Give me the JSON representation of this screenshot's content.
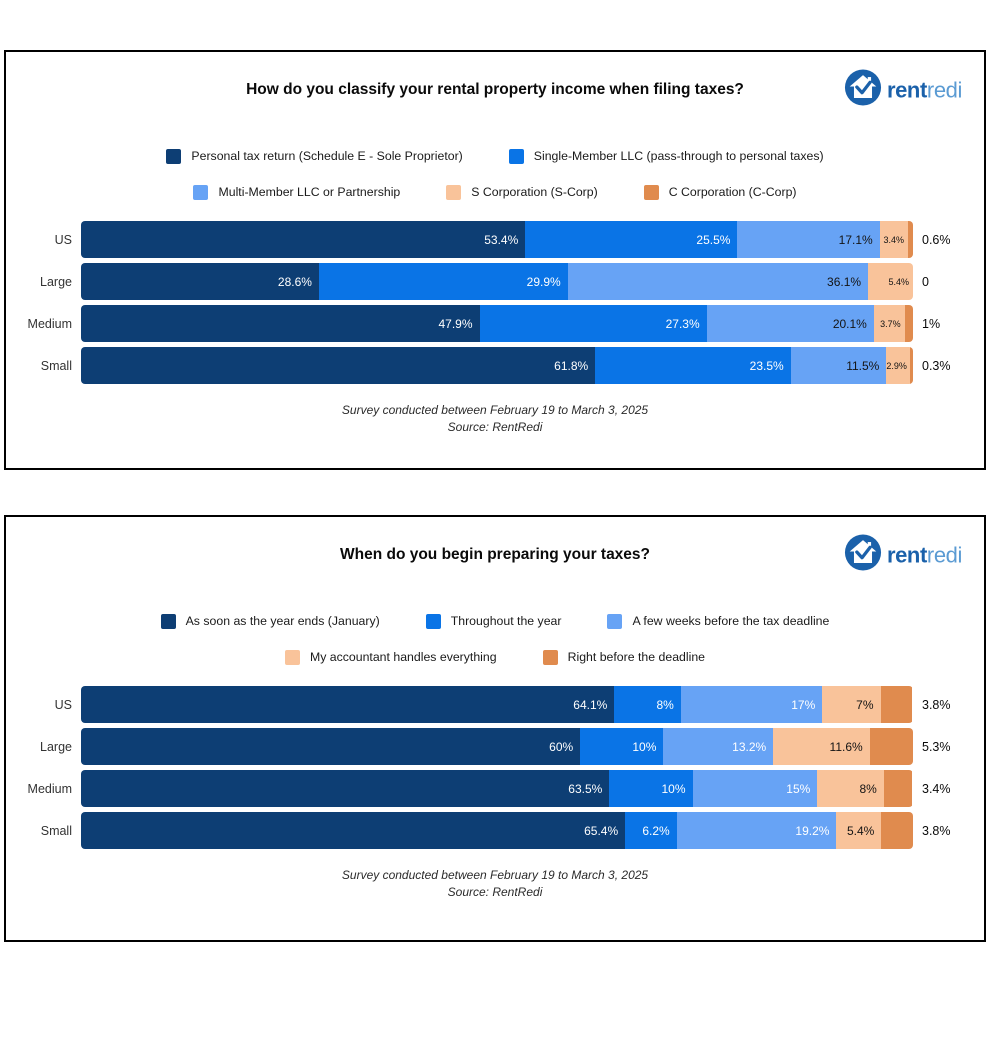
{
  "logo": {
    "brand_bold": "rent",
    "brand_light": "redi"
  },
  "chart_data": [
    {
      "type": "bar",
      "stacked": true,
      "orientation": "horizontal",
      "title": "How do you classify your rental property income when filing taxes?",
      "xlim": [
        0,
        100
      ],
      "unit": "%",
      "grid": false,
      "legend_position": "top-center",
      "legend": [
        {
          "label": "Personal tax return (Schedule E - Sole Proprietor)",
          "color": "#0d3e74"
        },
        {
          "label": "Single-Member LLC (pass-through to personal taxes)",
          "color": "#0a74e6"
        },
        {
          "label": "Multi-Member LLC or Partnership",
          "color": "#67a3f5"
        },
        {
          "label": "S Corporation (S-Corp)",
          "color": "#f9c39a"
        },
        {
          "label": "C Corporation (C-Corp)",
          "color": "#e08b4e"
        }
      ],
      "rows": [
        {
          "category": "US",
          "segments": [
            {
              "value": 53.4,
              "label": "53.4%"
            },
            {
              "value": 25.5,
              "label": "25.5%"
            },
            {
              "value": 17.1,
              "label": "17.1%"
            },
            {
              "value": 3.4,
              "label": "3.4%"
            },
            {
              "value": 0.6,
              "label": ""
            }
          ],
          "outside_label": "0.6%"
        },
        {
          "category": "Large",
          "segments": [
            {
              "value": 28.6,
              "label": "28.6%"
            },
            {
              "value": 29.9,
              "label": "29.9%"
            },
            {
              "value": 36.1,
              "label": "36.1%"
            },
            {
              "value": 5.4,
              "label": "5.4%"
            },
            {
              "value": 0,
              "label": ""
            }
          ],
          "outside_label": "0"
        },
        {
          "category": "Medium",
          "segments": [
            {
              "value": 47.9,
              "label": "47.9%"
            },
            {
              "value": 27.3,
              "label": "27.3%"
            },
            {
              "value": 20.1,
              "label": "20.1%"
            },
            {
              "value": 3.7,
              "label": "3.7%"
            },
            {
              "value": 1,
              "label": ""
            }
          ],
          "outside_label": "1%"
        },
        {
          "category": "Small",
          "segments": [
            {
              "value": 61.8,
              "label": "61.8%"
            },
            {
              "value": 23.5,
              "label": "23.5%"
            },
            {
              "value": 11.5,
              "label": "11.5%"
            },
            {
              "value": 2.9,
              "label": "2.9%"
            },
            {
              "value": 0.3,
              "label": ""
            }
          ],
          "outside_label": "0.3%"
        }
      ],
      "footnote_line1": "Survey conducted between February 19 to March 3, 2025",
      "footnote_line2": "Source: RentRedi"
    },
    {
      "type": "bar",
      "stacked": true,
      "orientation": "horizontal",
      "title": "When do you begin preparing your taxes?",
      "xlim": [
        0,
        100
      ],
      "unit": "%",
      "grid": false,
      "legend_position": "top-center",
      "legend": [
        {
          "label": "As soon as the year ends (January)",
          "color": "#0d3e74"
        },
        {
          "label": "Throughout the year",
          "color": "#0a74e6"
        },
        {
          "label": "A few weeks before the tax deadline",
          "color": "#67a3f5"
        },
        {
          "label": "My accountant handles everything",
          "color": "#f9c39a"
        },
        {
          "label": "Right before the deadline",
          "color": "#e08b4e"
        }
      ],
      "rows": [
        {
          "category": "US",
          "segments": [
            {
              "value": 64.1,
              "label": "64.1%"
            },
            {
              "value": 8,
              "label": "8%"
            },
            {
              "value": 17,
              "label": "17%"
            },
            {
              "value": 7,
              "label": "7%"
            },
            {
              "value": 3.8,
              "label": ""
            }
          ],
          "outside_label": "3.8%"
        },
        {
          "category": "Large",
          "segments": [
            {
              "value": 60,
              "label": "60%"
            },
            {
              "value": 10,
              "label": "10%"
            },
            {
              "value": 13.2,
              "label": "13.2%"
            },
            {
              "value": 11.6,
              "label": "11.6%"
            },
            {
              "value": 5.3,
              "label": ""
            }
          ],
          "outside_label": "5.3%"
        },
        {
          "category": "Medium",
          "segments": [
            {
              "value": 63.5,
              "label": "63.5%"
            },
            {
              "value": 10,
              "label": "10%"
            },
            {
              "value": 15,
              "label": "15%"
            },
            {
              "value": 8,
              "label": "8%"
            },
            {
              "value": 3.4,
              "label": ""
            }
          ],
          "outside_label": "3.4%"
        },
        {
          "category": "Small",
          "segments": [
            {
              "value": 65.4,
              "label": "65.4%"
            },
            {
              "value": 6.2,
              "label": "6.2%"
            },
            {
              "value": 19.2,
              "label": "19.2%"
            },
            {
              "value": 5.4,
              "label": "5.4%"
            },
            {
              "value": 3.8,
              "label": ""
            }
          ],
          "outside_label": "3.8%"
        }
      ],
      "footnote_line1": "Survey conducted between February 19 to March 3, 2025",
      "footnote_line2": "Source: RentRedi"
    }
  ]
}
